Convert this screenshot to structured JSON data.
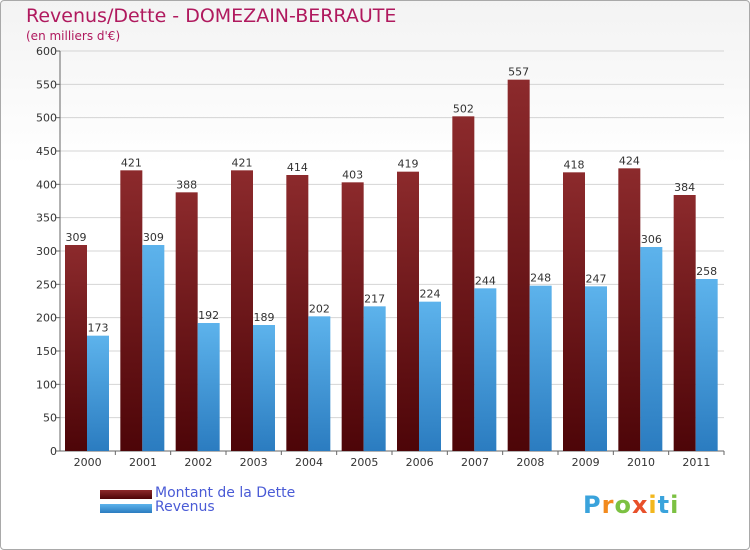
{
  "header": {
    "title": "Revenus/Dette - DOMEZAIN-BERRAUTE",
    "subtitle": "(en milliers d'€)"
  },
  "legend": {
    "debt_label": "Montant de la Dette",
    "revenue_label": "Revenus"
  },
  "logo": {
    "letters": [
      "P",
      "r",
      "o",
      "x",
      "i",
      "t",
      "i"
    ],
    "colors": [
      "#3aa3dc",
      "#f28a1e",
      "#7cc142",
      "#e8502a",
      "#f2b71e",
      "#3aa3dc",
      "#7cc142"
    ]
  },
  "colors": {
    "debt": "#7a1a1e",
    "revenue": "#3d97d8",
    "title": "#b0195e"
  },
  "chart_data": {
    "type": "bar",
    "title": "Revenus/Dette - DOMEZAIN-BERRAUTE",
    "subtitle": "(en milliers d'€)",
    "categories": [
      "2000",
      "2001",
      "2002",
      "2003",
      "2004",
      "2005",
      "2006",
      "2007",
      "2008",
      "2009",
      "2010",
      "2011"
    ],
    "series": [
      {
        "name": "Montant de la Dette",
        "values": [
          309,
          421,
          388,
          421,
          414,
          403,
          419,
          502,
          557,
          418,
          424,
          384
        ]
      },
      {
        "name": "Revenus",
        "values": [
          173,
          309,
          192,
          189,
          202,
          217,
          224,
          244,
          248,
          247,
          306,
          258
        ]
      }
    ],
    "ylim": [
      0,
      600
    ],
    "yticks": [
      0,
      50,
      100,
      150,
      200,
      250,
      300,
      350,
      400,
      450,
      500,
      550,
      600
    ],
    "grid": true,
    "legend_position": "bottom-left"
  }
}
